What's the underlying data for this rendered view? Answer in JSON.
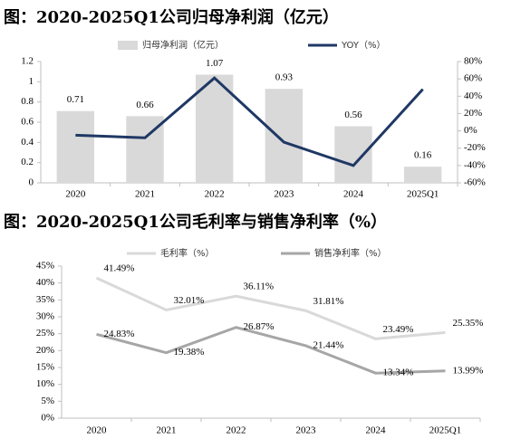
{
  "chart_data": [
    {
      "type": "bar",
      "title": "图：2020-2025Q1公司归母净利润（亿元）",
      "categories": [
        "2020",
        "2021",
        "2022",
        "2023",
        "2024",
        "2025Q1"
      ],
      "series": [
        {
          "name": "归母净利润（亿元）",
          "type": "bar",
          "color": "#d9d9d9",
          "values": [
            0.71,
            0.66,
            1.07,
            0.93,
            0.56,
            0.16
          ]
        },
        {
          "name": "YOY（%）",
          "type": "line",
          "axis": "y2",
          "color": "#1f3864",
          "values": [
            -5,
            -8,
            61,
            -13,
            -40,
            48
          ]
        }
      ],
      "ylim": [
        0,
        1.2
      ],
      "yticks": [
        0,
        0.2,
        0.4,
        0.6,
        0.8,
        1,
        1.2
      ],
      "y2lim": [
        -60,
        80
      ],
      "y2ticks": [
        {
          "value": -60,
          "label": "-60%"
        },
        {
          "value": -40,
          "label": "-40%"
        },
        {
          "value": -20,
          "label": "-20%"
        },
        {
          "value": 0,
          "label": "0%"
        },
        {
          "value": 20,
          "label": "20%"
        },
        {
          "value": 40,
          "label": "40%"
        },
        {
          "value": 60,
          "label": "60%"
        },
        {
          "value": 80,
          "label": "80%"
        }
      ],
      "grid": false,
      "legend": "top"
    },
    {
      "type": "line",
      "title": "图：2020-2025Q1公司毛利率与销售净利率（%）",
      "categories": [
        "2020",
        "2021",
        "2022",
        "2023",
        "2024",
        "2025Q1"
      ],
      "series": [
        {
          "name": "毛利率（%）",
          "color": "#d9d9d9",
          "values": [
            41.49,
            32.01,
            36.11,
            31.81,
            23.49,
            25.35
          ],
          "value_labels": [
            "41.49%",
            "32.01%",
            "36.11%",
            "31.81%",
            "23.49%",
            "25.35%"
          ]
        },
        {
          "name": "销售净利率（%）",
          "color": "#a6a6a6",
          "values": [
            24.83,
            19.38,
            26.87,
            21.44,
            13.34,
            13.99
          ],
          "value_labels": [
            "24.83%",
            "19.38%",
            "26.87%",
            "21.44%",
            "13.34%",
            "13.99%"
          ]
        }
      ],
      "ylim": [
        0,
        45
      ],
      "yticks": [
        {
          "value": 0,
          "label": "0%"
        },
        {
          "value": 5,
          "label": "5%"
        },
        {
          "value": 10,
          "label": "10%"
        },
        {
          "value": 15,
          "label": "15%"
        },
        {
          "value": 20,
          "label": "20%"
        },
        {
          "value": 25,
          "label": "25%"
        },
        {
          "value": 30,
          "label": "30%"
        },
        {
          "value": 35,
          "label": "35%"
        },
        {
          "value": 40,
          "label": "40%"
        },
        {
          "value": 45,
          "label": "45%"
        }
      ],
      "grid": false,
      "legend": "top"
    }
  ]
}
